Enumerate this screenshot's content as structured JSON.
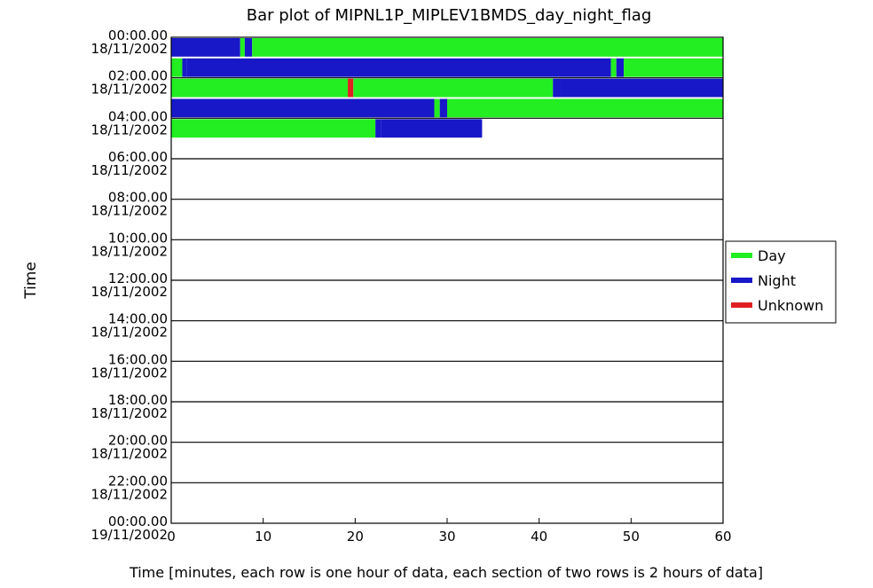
{
  "chart_data": {
    "type": "bar",
    "title": "Bar plot of  MIPNL1P_MIPLEV1BMDS_day_night_flag",
    "xlabel": "Time [minutes, each row is one hour of data, each section of two rows is 2 hours of data]",
    "ylabel": "Time",
    "xlim": [
      0,
      60
    ],
    "x_ticks": [
      "0",
      "10",
      "20",
      "30",
      "40",
      "50",
      "60"
    ],
    "y_ticks": [
      [
        "00:00.00",
        "18/11/2002"
      ],
      [
        "02:00.00",
        "18/11/2002"
      ],
      [
        "04:00.00",
        "18/11/2002"
      ],
      [
        "06:00.00",
        "18/11/2002"
      ],
      [
        "08:00.00",
        "18/11/2002"
      ],
      [
        "10:00.00",
        "18/11/2002"
      ],
      [
        "12:00.00",
        "18/11/2002"
      ],
      [
        "14:00.00",
        "18/11/2002"
      ],
      [
        "16:00.00",
        "18/11/2002"
      ],
      [
        "18:00.00",
        "18/11/2002"
      ],
      [
        "20:00.00",
        "18/11/2002"
      ],
      [
        "22:00.00",
        "18/11/2002"
      ],
      [
        "00:00.00",
        "19/11/2002"
      ]
    ],
    "legend": {
      "placement": "right",
      "items": [
        {
          "label": "Day",
          "color": "#22ee22"
        },
        {
          "label": "Night",
          "color": "#1818c8"
        },
        {
          "label": "Unknown",
          "color": "#e02020"
        }
      ]
    },
    "rows": [
      {
        "segments": [
          {
            "start": 0,
            "end": 7.5,
            "flag": "Night"
          },
          {
            "start": 7.5,
            "end": 8.0,
            "flag": "Day"
          },
          {
            "start": 8.0,
            "end": 8.8,
            "flag": "Night"
          },
          {
            "start": 8.8,
            "end": 60,
            "flag": "Day"
          }
        ]
      },
      {
        "segments": [
          {
            "start": 0,
            "end": 1.2,
            "flag": "Day"
          },
          {
            "start": 1.2,
            "end": 1.7,
            "flag": "Night"
          },
          {
            "start": 1.7,
            "end": 47.8,
            "flag": "Night"
          },
          {
            "start": 47.8,
            "end": 48.4,
            "flag": "Day"
          },
          {
            "start": 48.4,
            "end": 49.2,
            "flag": "Night"
          },
          {
            "start": 49.2,
            "end": 60,
            "flag": "Day"
          }
        ]
      },
      {
        "segments": [
          {
            "start": 0,
            "end": 19.2,
            "flag": "Day"
          },
          {
            "start": 19.2,
            "end": 19.8,
            "flag": "Unknown"
          },
          {
            "start": 19.8,
            "end": 41.5,
            "flag": "Day"
          },
          {
            "start": 41.5,
            "end": 42.3,
            "flag": "Night"
          },
          {
            "start": 42.3,
            "end": 60,
            "flag": "Night"
          }
        ]
      },
      {
        "segments": [
          {
            "start": 0,
            "end": 28.6,
            "flag": "Night"
          },
          {
            "start": 28.6,
            "end": 29.2,
            "flag": "Day"
          },
          {
            "start": 29.2,
            "end": 30.0,
            "flag": "Night"
          },
          {
            "start": 30.0,
            "end": 60,
            "flag": "Day"
          }
        ]
      },
      {
        "segments": [
          {
            "start": 0,
            "end": 22.2,
            "flag": "Day"
          },
          {
            "start": 22.2,
            "end": 22.8,
            "flag": "Night"
          },
          {
            "start": 22.8,
            "end": 33.8,
            "flag": "Night"
          }
        ]
      }
    ]
  }
}
